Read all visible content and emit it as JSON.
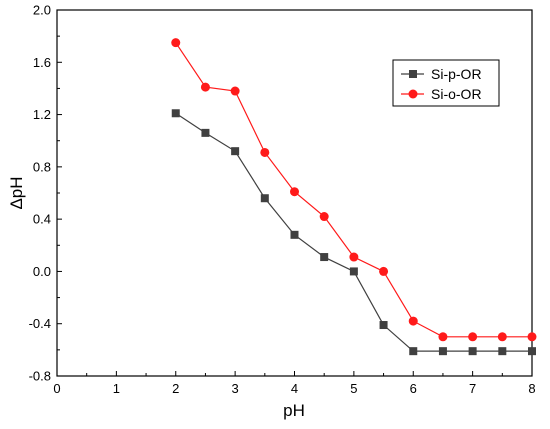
{
  "chart_data": {
    "type": "line",
    "xlabel": "pH",
    "ylabel": "ΔpH",
    "xlim": [
      0,
      8
    ],
    "ylim": [
      -0.8,
      2.0
    ],
    "x_ticks": [
      0,
      1,
      2,
      3,
      4,
      5,
      6,
      7,
      8
    ],
    "y_ticks": [
      -0.8,
      -0.4,
      0.0,
      0.4,
      0.8,
      1.2,
      1.6,
      2.0
    ],
    "x_tick_labels": [
      "0",
      "1",
      "2",
      "3",
      "4",
      "5",
      "6",
      "7",
      "8"
    ],
    "y_tick_labels": [
      "-0.8",
      "-0.4",
      "0.0",
      "0.4",
      "0.8",
      "1.2",
      "1.6",
      "2.0"
    ],
    "grid": false,
    "legend_position": "top-right",
    "series": [
      {
        "name": "Si-p-OR",
        "color": "#404040",
        "marker": "square",
        "x": [
          2,
          2.5,
          3,
          3.5,
          4,
          4.5,
          5,
          5.5,
          6,
          6.5,
          7,
          7.5,
          8
        ],
        "y": [
          1.21,
          1.06,
          0.92,
          0.56,
          0.28,
          0.11,
          0.0,
          -0.41,
          -0.61,
          -0.61,
          -0.61,
          -0.61,
          -0.61
        ]
      },
      {
        "name": "Si-o-OR",
        "color": "#ff1a1a",
        "marker": "circle",
        "x": [
          2,
          2.5,
          3,
          3.5,
          4,
          4.5,
          5,
          5.5,
          6,
          6.5,
          7,
          7.5,
          8
        ],
        "y": [
          1.75,
          1.41,
          1.38,
          0.91,
          0.61,
          0.42,
          0.11,
          0.0,
          -0.38,
          -0.5,
          -0.5,
          -0.5,
          -0.5
        ]
      }
    ]
  }
}
